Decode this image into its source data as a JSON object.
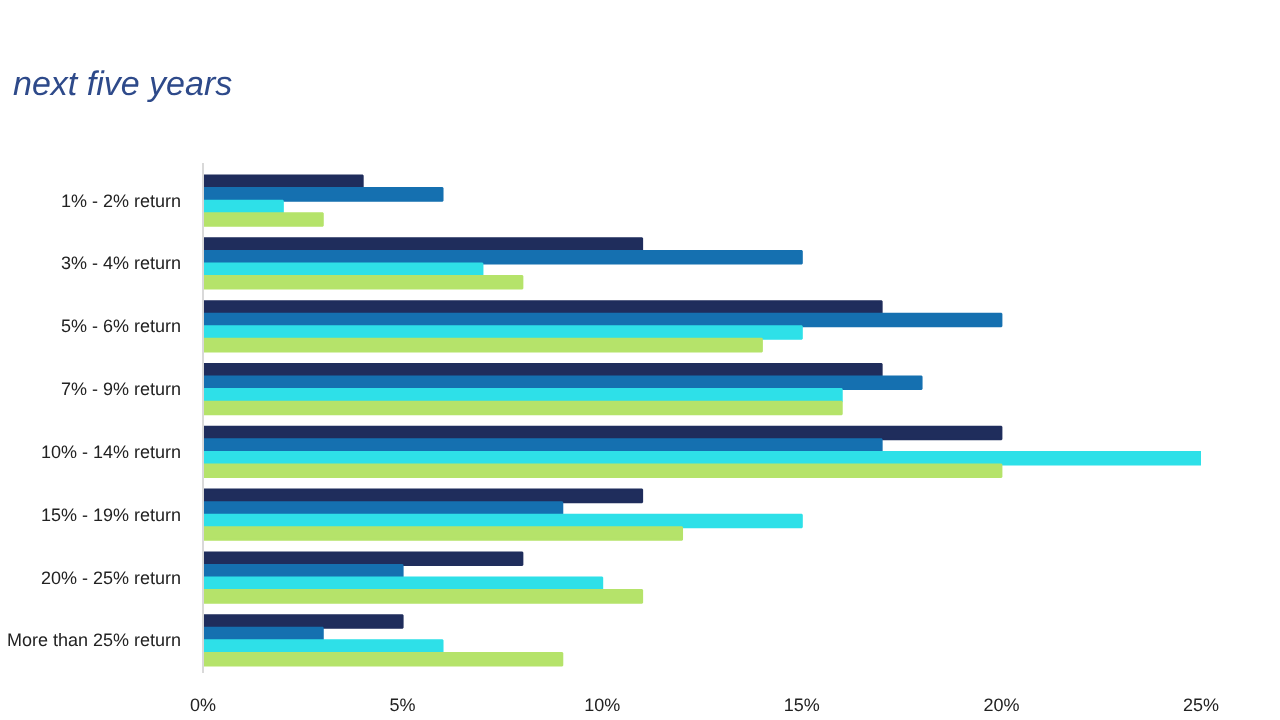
{
  "chart_data": {
    "type": "bar",
    "orientation": "horizontal",
    "title": "next five years",
    "categories": [
      "1% - 2% return",
      "3% - 4% return",
      "5% - 6% return",
      "7% - 9% return",
      "10% - 14% return",
      "15% - 19% return",
      "20% - 25% return",
      "More than 25% return"
    ],
    "series": [
      {
        "color": "#1f2d5c",
        "values": [
          4,
          11,
          17,
          17,
          20,
          11,
          8,
          5
        ]
      },
      {
        "color": "#1570b0",
        "values": [
          6,
          15,
          20,
          18,
          17,
          9,
          5,
          3
        ]
      },
      {
        "color": "#2ee0e8",
        "values": [
          2,
          7,
          15,
          16,
          25,
          15,
          10,
          6
        ]
      },
      {
        "color": "#b5e36a",
        "values": [
          3,
          8,
          14,
          16,
          20,
          12,
          11,
          9
        ]
      }
    ],
    "xlim": [
      0,
      25
    ],
    "xticks": [
      {
        "value": 0,
        "label": "0%"
      },
      {
        "value": 5,
        "label": "5%"
      },
      {
        "value": 10,
        "label": "10%"
      },
      {
        "value": 15,
        "label": "15%"
      },
      {
        "value": 20,
        "label": "20%"
      },
      {
        "value": 25,
        "label": "25%"
      }
    ],
    "grid": false
  }
}
